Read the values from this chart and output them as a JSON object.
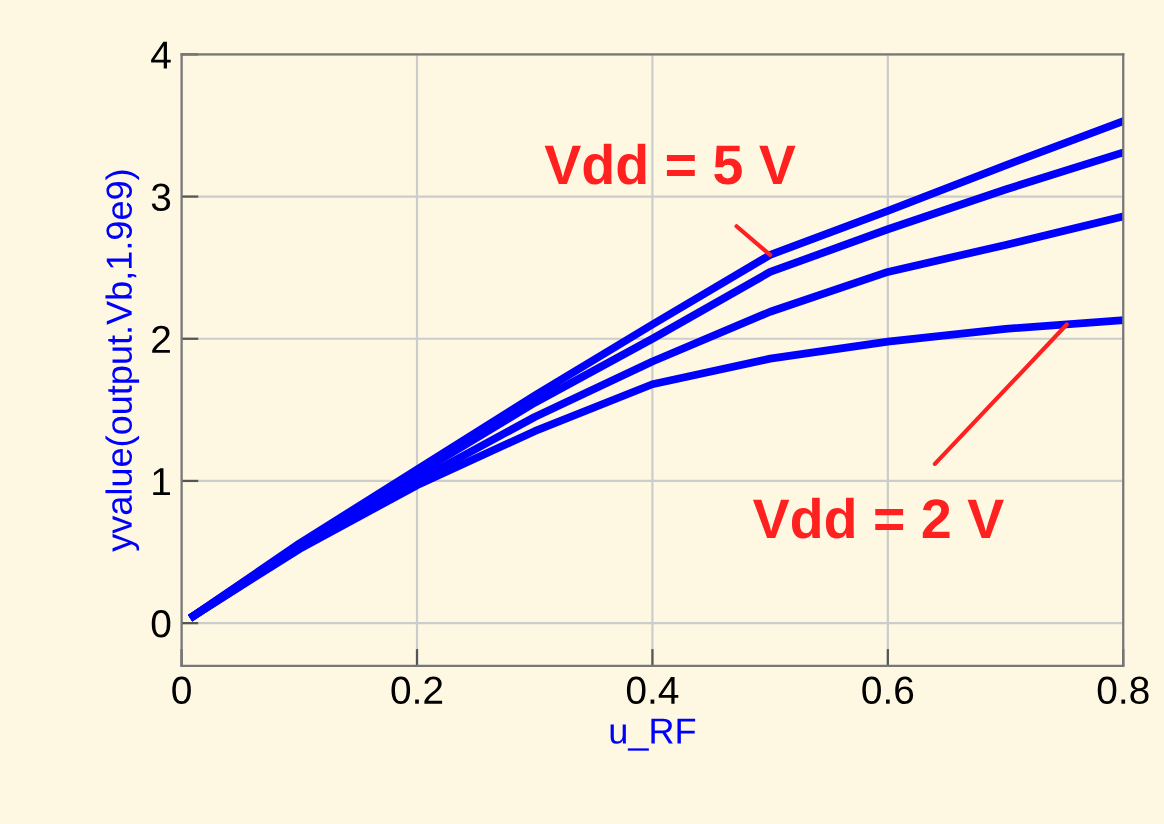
{
  "chart_data": {
    "type": "line",
    "xlabel": "u_RF",
    "ylabel": "yvalue(output.Vb,1.9e9)",
    "x": [
      0.01,
      0.1,
      0.2,
      0.3,
      0.4,
      0.5,
      0.6,
      0.7,
      0.8
    ],
    "series": [
      {
        "color": "#0000ff",
        "values": [
          0.05,
          0.56,
          1.08,
          1.6,
          2.1,
          2.59,
          2.9,
          3.22,
          3.53
        ]
      },
      {
        "color": "#0000ff",
        "values": [
          0.05,
          0.55,
          1.05,
          1.55,
          2.0,
          2.47,
          2.77,
          3.05,
          3.31
        ]
      },
      {
        "color": "#0000ff",
        "values": [
          0.05,
          0.53,
          1.0,
          1.45,
          1.84,
          2.19,
          2.47,
          2.66,
          2.86
        ]
      },
      {
        "color": "#0000ff",
        "values": [
          0.05,
          0.52,
          0.97,
          1.35,
          1.68,
          1.86,
          1.98,
          2.07,
          2.13
        ]
      }
    ],
    "annotations": [
      {
        "text": "Vdd = 5 V",
        "x": 0.5,
        "y": 2.59
      },
      {
        "text": "Vdd = 2 V",
        "x": 0.752,
        "y": 2.1
      }
    ],
    "xlim": [
      0,
      0.8
    ],
    "ylim": [
      -0.3,
      4
    ],
    "xticks": [
      0,
      0.2,
      0.4,
      0.6,
      0.8
    ],
    "yticks": [
      0,
      1,
      2,
      3,
      4
    ],
    "grid": true,
    "marker": "none",
    "line_style": "solid"
  }
}
